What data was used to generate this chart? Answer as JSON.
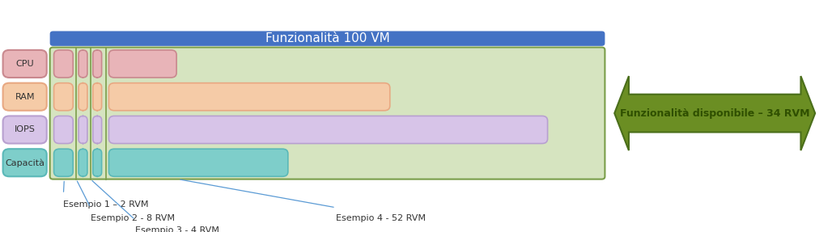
{
  "title": "Funzionalità 100 VM",
  "title_bg": "#4472c4",
  "title_fg": "#ffffff",
  "arrow_label": "Funzionalità disponibile – 34 RVM",
  "arrow_color": "#6b8e23",
  "arrow_border": "#4a6e1a",
  "arrow_text_color": "#2f4f00",
  "main_bg": "#d6e4c0",
  "main_border": "#7a9e4a",
  "row_labels": [
    "CPU",
    "RAM",
    "IOPS",
    "Capacità"
  ],
  "row_colors": [
    "#e8b4b8",
    "#f5cba7",
    "#d7c4e8",
    "#7ececa"
  ],
  "row_border_colors": [
    "#c9888e",
    "#e8a882",
    "#b8a0d0",
    "#5ab8b8"
  ],
  "annotation_labels": [
    "Esempio 1 – 2 RVM",
    "Esempio 2 - 8 RVM",
    "Esempio 3 - 4 RVM",
    "Esempio 4 - 52 RVM"
  ],
  "ann_line_color": "#5b9bd5",
  "label_bg": "#f0f0f0",
  "figw": 10.28,
  "figh": 2.87
}
